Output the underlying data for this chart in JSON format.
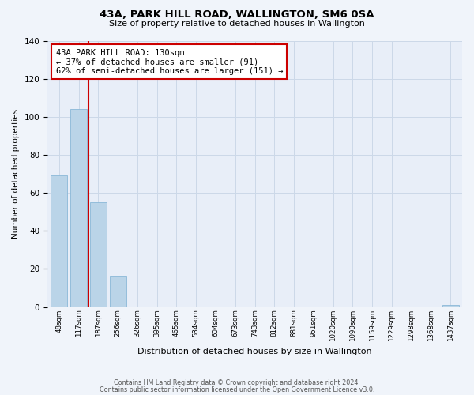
{
  "title": "43A, PARK HILL ROAD, WALLINGTON, SM6 0SA",
  "subtitle": "Size of property relative to detached houses in Wallington",
  "xlabel": "Distribution of detached houses by size in Wallington",
  "ylabel": "Number of detached properties",
  "categories": [
    "48sqm",
    "117sqm",
    "187sqm",
    "256sqm",
    "326sqm",
    "395sqm",
    "465sqm",
    "534sqm",
    "604sqm",
    "673sqm",
    "743sqm",
    "812sqm",
    "881sqm",
    "951sqm",
    "1020sqm",
    "1090sqm",
    "1159sqm",
    "1229sqm",
    "1298sqm",
    "1368sqm",
    "1437sqm"
  ],
  "values": [
    69,
    104,
    55,
    16,
    0,
    0,
    0,
    0,
    0,
    0,
    0,
    0,
    0,
    0,
    0,
    0,
    0,
    0,
    0,
    0,
    1
  ],
  "bar_color": "#bad4e8",
  "bar_edge_color": "#8ab8d8",
  "property_line_x": 1.5,
  "property_line_color": "#cc0000",
  "annotation_line1": "43A PARK HILL ROAD: 130sqm",
  "annotation_line2": "← 37% of detached houses are smaller (91)",
  "annotation_line3": "62% of semi-detached houses are larger (151) →",
  "annotation_box_color": "#ffffff",
  "annotation_box_edge_color": "#cc0000",
  "ylim": [
    0,
    140
  ],
  "yticks": [
    0,
    20,
    40,
    60,
    80,
    100,
    120,
    140
  ],
  "grid_color": "#ccd8e8",
  "bg_color": "#e8eef8",
  "fig_bg_color": "#f0f4fa",
  "footnote1": "Contains HM Land Registry data © Crown copyright and database right 2024.",
  "footnote2": "Contains public sector information licensed under the Open Government Licence v3.0."
}
